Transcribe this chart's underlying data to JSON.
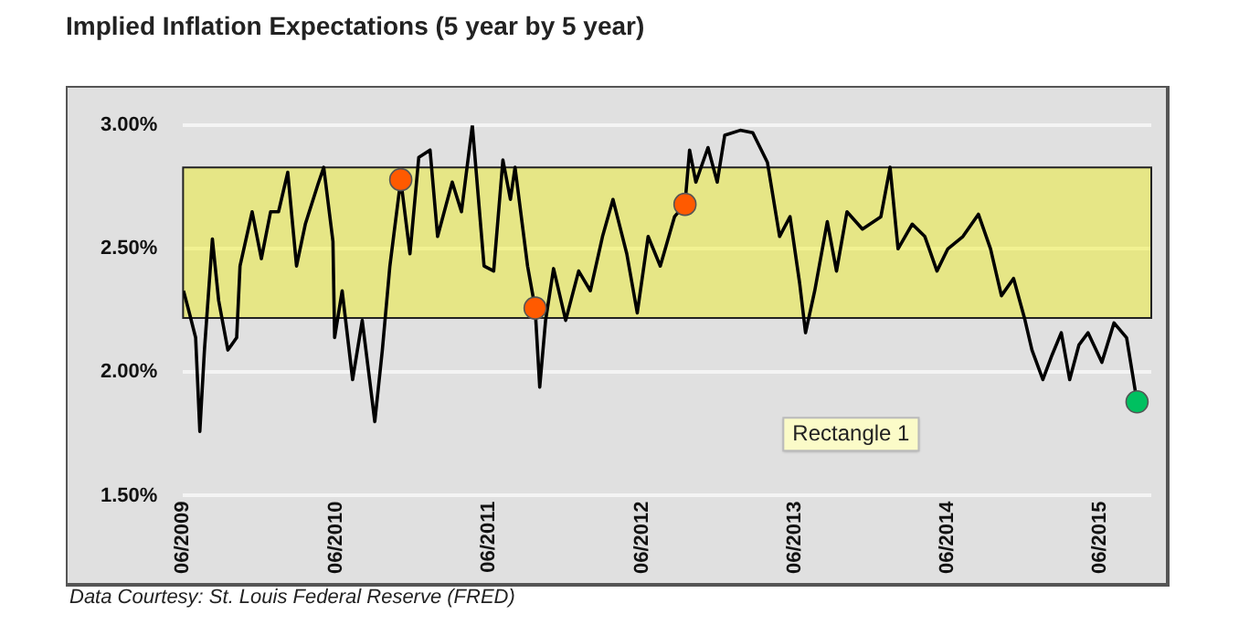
{
  "chart_data": {
    "type": "line",
    "title": "Implied Inflation Expectations (5 year by 5 year)",
    "annotations": [
      "Data Courtesy: St. Louis Federal Reserve (FRED)",
      "Rectangle 1"
    ],
    "xlim": [
      "2009-06",
      "2015-10"
    ],
    "xticks": [
      {
        "value": "2009-06",
        "label": "06/2009"
      },
      {
        "value": "2010-06",
        "label": "06/2010"
      },
      {
        "value": "2011-06",
        "label": "06/2011"
      },
      {
        "value": "2012-06",
        "label": "06/2012"
      },
      {
        "value": "2013-06",
        "label": "06/2013"
      },
      {
        "value": "2014-06",
        "label": "06/2014"
      },
      {
        "value": "2015-06",
        "label": "06/2015"
      }
    ],
    "ylim": [
      1.5,
      3.0
    ],
    "yticks": [
      {
        "value": 1.5,
        "label": "1.50%"
      },
      {
        "value": 2.0,
        "label": "2.00%"
      },
      {
        "value": 2.5,
        "label": "2.50%"
      },
      {
        "value": 3.0,
        "label": "3.00%"
      }
    ],
    "grid": "y",
    "bands": [
      {
        "axis": "y",
        "from": 2.22,
        "to": 2.83,
        "color": "#f0f000"
      }
    ],
    "series": [
      {
        "color": "#000000",
        "marker": "none",
        "x": [
          "2009-06-02",
          "2009-06-16",
          "2009-07-01",
          "2009-07-11",
          "2009-07-22",
          "2009-08-10",
          "2009-08-25",
          "2009-09-16",
          "2009-10-07",
          "2009-10-15",
          "2009-11-13",
          "2009-12-05",
          "2009-12-27",
          "2010-01-15",
          "2010-02-06",
          "2010-02-27",
          "2010-03-20",
          "2010-04-19",
          "2010-05-03",
          "2010-05-25",
          "2010-05-29",
          "2010-06-16",
          "2010-07-11",
          "2010-08-03",
          "2010-09-02",
          "2010-09-20",
          "2010-10-08",
          "2010-11-03",
          "2010-11-25",
          "2010-12-16",
          "2011-01-12",
          "2011-01-30",
          "2011-03-06",
          "2011-03-28",
          "2011-04-23",
          "2011-05-21",
          "2011-06-13",
          "2011-07-05",
          "2011-07-23",
          "2011-08-03",
          "2011-09-02",
          "2011-09-20",
          "2011-10-01",
          "2011-10-15",
          "2011-11-03",
          "2011-12-02",
          "2012-01-02",
          "2012-01-30",
          "2012-02-28",
          "2012-03-24",
          "2012-04-26",
          "2012-05-21",
          "2012-06-16",
          "2012-07-15",
          "2012-08-18",
          "2012-09-12",
          "2012-09-23",
          "2012-10-08",
          "2012-11-06",
          "2012-11-28",
          "2012-12-16",
          "2013-01-22",
          "2013-02-21",
          "2013-03-28",
          "2013-04-26",
          "2013-05-21",
          "2013-06-13",
          "2013-06-27",
          "2013-07-19",
          "2013-08-18",
          "2013-09-09",
          "2013-10-04",
          "2013-11-10",
          "2013-12-24",
          "2014-01-15",
          "2014-02-03",
          "2014-03-09",
          "2014-04-08",
          "2014-05-07",
          "2014-06-02",
          "2014-07-08",
          "2014-08-14",
          "2014-09-12",
          "2014-10-08",
          "2014-11-06",
          "2014-12-02",
          "2014-12-20",
          "2015-01-15",
          "2015-02-06",
          "2015-02-28",
          "2015-03-20",
          "2015-04-11",
          "2015-05-03",
          "2015-06-05",
          "2015-07-04",
          "2015-08-03",
          "2015-08-28"
        ],
        "values": [
          2.33,
          2.24,
          2.14,
          1.76,
          2.09,
          2.54,
          2.29,
          2.09,
          2.14,
          2.43,
          2.65,
          2.46,
          2.65,
          2.65,
          2.81,
          2.43,
          2.6,
          2.76,
          2.83,
          2.53,
          2.14,
          2.33,
          1.97,
          2.21,
          1.8,
          2.09,
          2.43,
          2.78,
          2.48,
          2.87,
          2.9,
          2.55,
          2.77,
          2.65,
          3.0,
          2.43,
          2.41,
          2.86,
          2.7,
          2.83,
          2.43,
          2.26,
          1.94,
          2.21,
          2.42,
          2.21,
          2.41,
          2.33,
          2.55,
          2.7,
          2.48,
          2.24,
          2.55,
          2.43,
          2.63,
          2.68,
          2.9,
          2.77,
          2.91,
          2.77,
          2.96,
          2.98,
          2.97,
          2.85,
          2.55,
          2.63,
          2.36,
          2.16,
          2.33,
          2.61,
          2.41,
          2.65,
          2.58,
          2.63,
          2.83,
          2.5,
          2.6,
          2.55,
          2.41,
          2.5,
          2.55,
          2.64,
          2.5,
          2.31,
          2.38,
          2.22,
          2.09,
          1.97,
          2.07,
          2.16,
          1.97,
          2.11,
          2.16,
          2.04,
          2.2,
          2.14,
          1.88
        ]
      },
      {
        "type": "scatter",
        "color": "#ff5a00",
        "marker": "circle",
        "x": [
          "2010-11-03",
          "2011-09-20",
          "2012-09-12"
        ],
        "values": [
          2.78,
          2.26,
          2.68
        ]
      },
      {
        "type": "scatter",
        "color": "#00c060",
        "marker": "circle",
        "x": [
          "2015-08-28"
        ],
        "values": [
          1.88
        ]
      }
    ]
  }
}
